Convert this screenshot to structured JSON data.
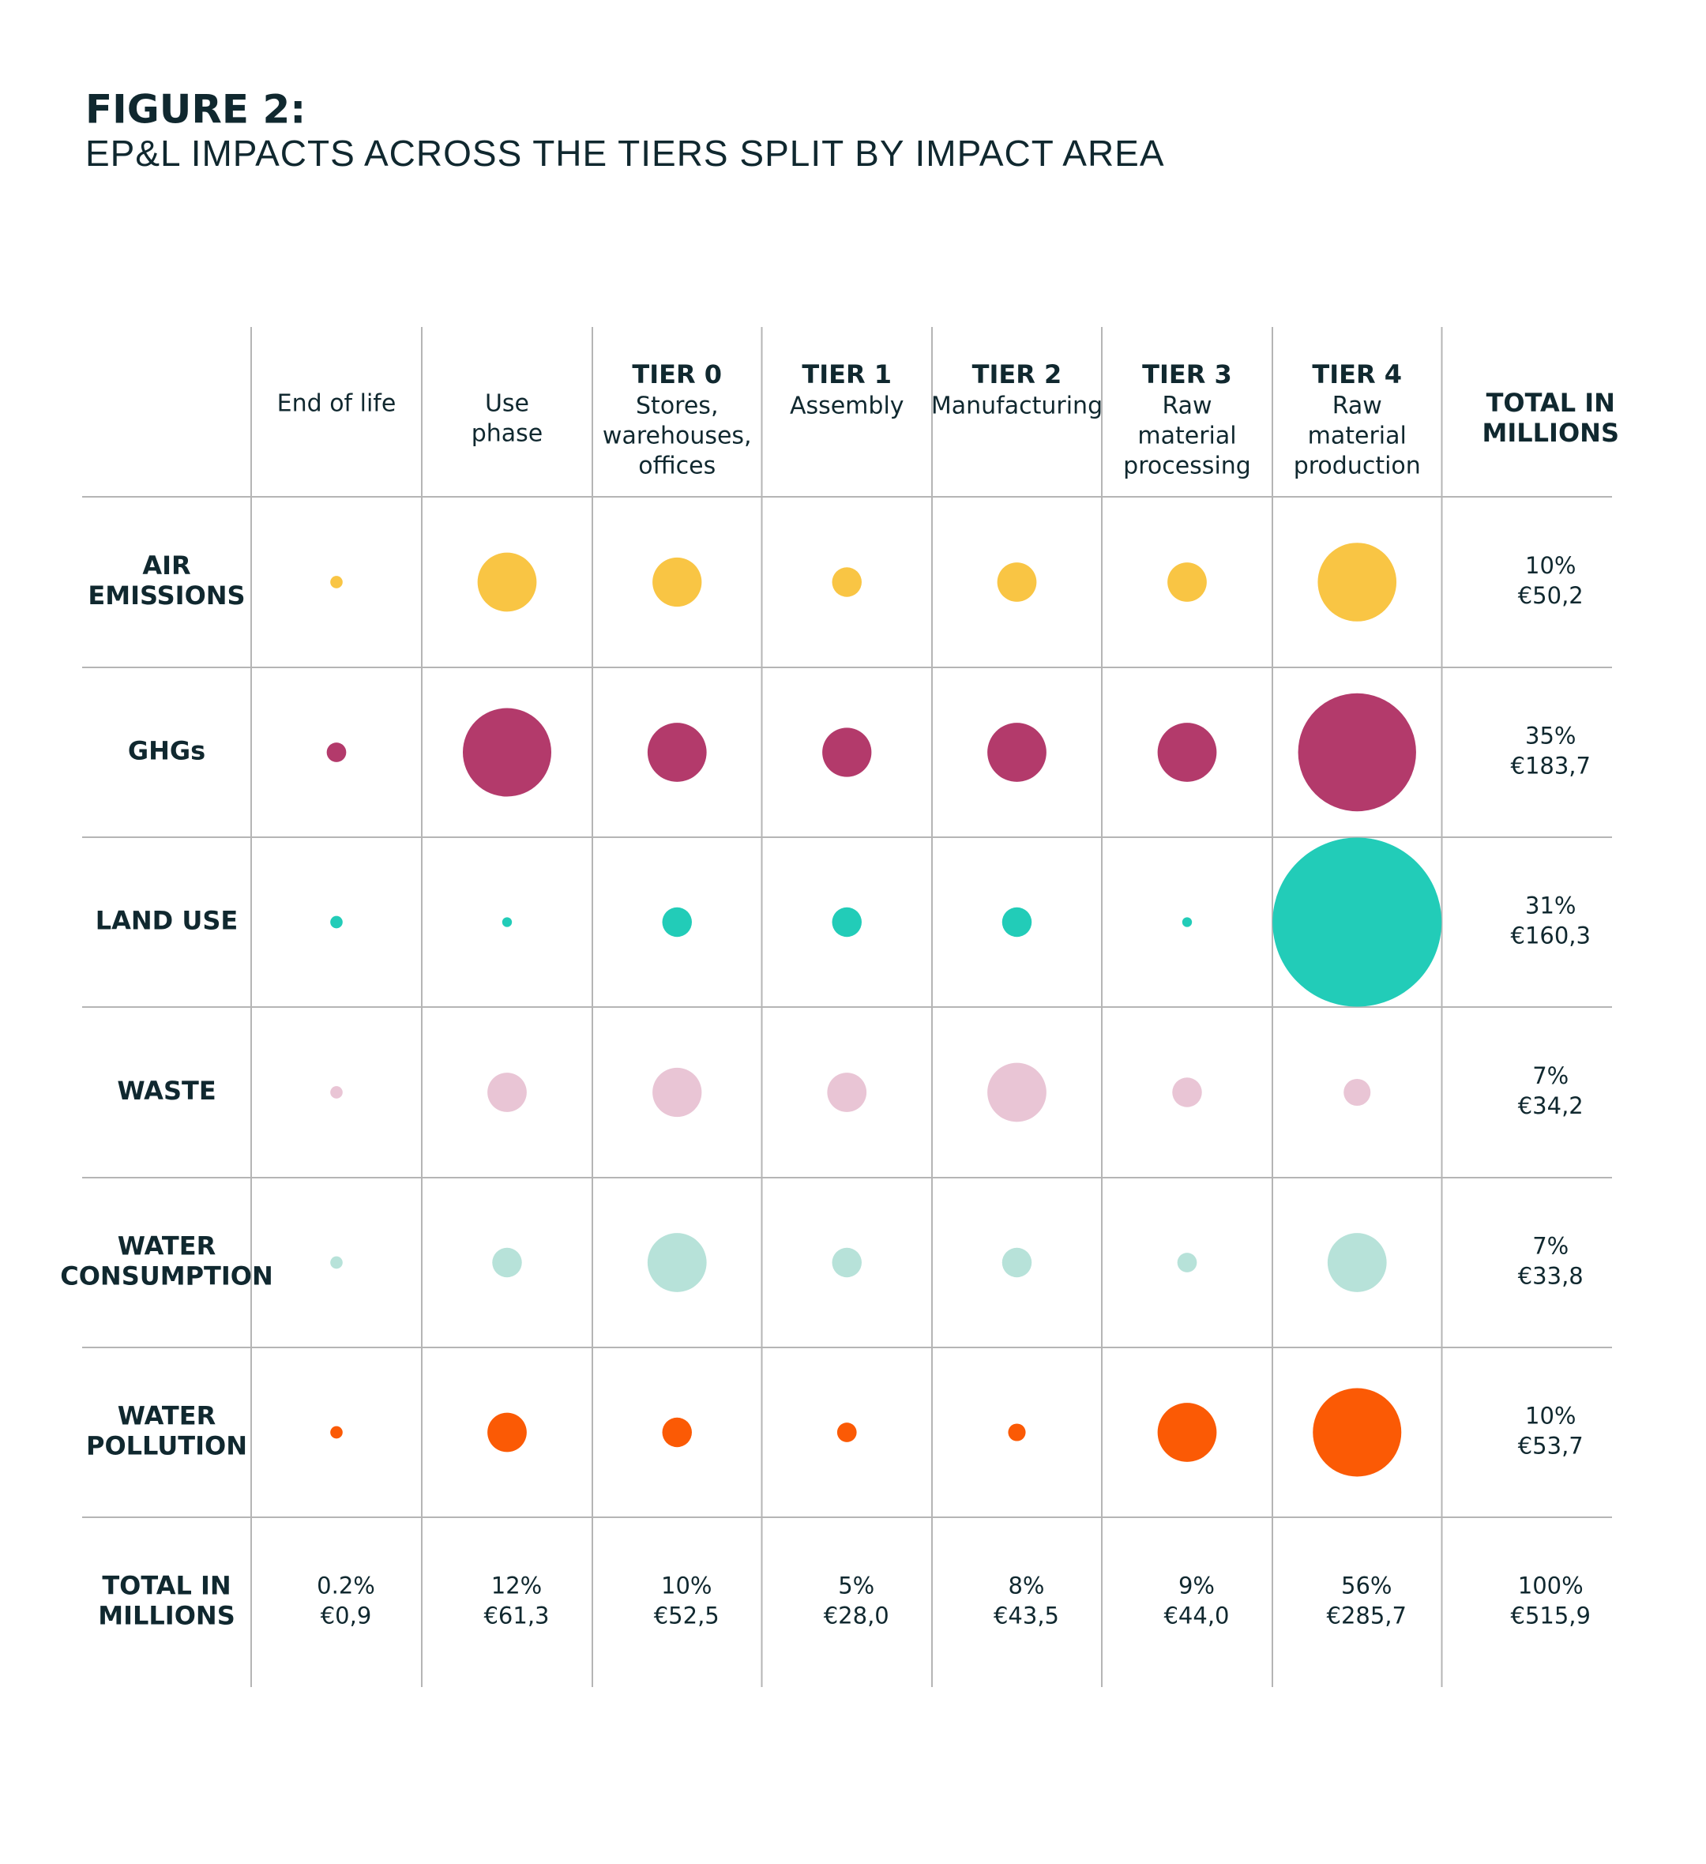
{
  "chart_data": {
    "type": "bubble",
    "title": "FIGURE 2:",
    "subtitle": "EP&L IMPACTS ACROSS THE TIERS SPLIT BY IMPACT AREA",
    "columns": [
      {
        "lines": [
          "End of life"
        ]
      },
      {
        "lines": [
          "Use",
          "phase"
        ]
      },
      {
        "tier": "TIER 0",
        "lines": [
          "Stores,",
          "warehouses,",
          "offices"
        ]
      },
      {
        "tier": "TIER 1",
        "lines": [
          "Assembly"
        ]
      },
      {
        "tier": "TIER 2",
        "lines": [
          "Manufacturing"
        ]
      },
      {
        "tier": "TIER 3",
        "lines": [
          "Raw",
          "material",
          "processing"
        ]
      },
      {
        "tier": "TIER 4",
        "lines": [
          "Raw",
          "material",
          "production"
        ]
      }
    ],
    "total_header": [
      "TOTAL IN",
      "MILLIONS"
    ],
    "series": [
      {
        "name": [
          "AIR",
          "EMISSIONS"
        ],
        "color": "#f9c544",
        "values": [
          0.8,
          18.3,
          12.7,
          4.6,
          8.1,
          8.1,
          32.5
        ],
        "total": [
          "10%",
          "€50,2"
        ]
      },
      {
        "name": [
          "GHGs"
        ],
        "color": "#b33a6b",
        "values": [
          2.0,
          41.1,
          18.3,
          12.7,
          18.3,
          18.3,
          73.1
        ],
        "total": [
          "35%",
          "€183,7"
        ]
      },
      {
        "name": [
          "LAND USE"
        ],
        "color": "#22ccb8",
        "values": [
          0.8,
          0.5,
          4.6,
          4.6,
          4.6,
          0.5,
          150
        ],
        "total": [
          "31%",
          "€160,3"
        ]
      },
      {
        "name": [
          "WASTE"
        ],
        "color": "#e9c5d5",
        "values": [
          0.8,
          8.1,
          12.7,
          8.1,
          18.3,
          4.6,
          3.8
        ],
        "total": [
          "7%",
          "€34,2"
        ]
      },
      {
        "name": [
          "WATER",
          "CONSUMPTION"
        ],
        "color": "#b7e2d9",
        "values": [
          0.8,
          4.6,
          18.3,
          4.6,
          4.6,
          2.0,
          18.3
        ],
        "total": [
          "7%",
          "€33,8"
        ]
      },
      {
        "name": [
          "WATER",
          "POLLUTION"
        ],
        "color": "#fb5a05",
        "values": [
          0.8,
          8.1,
          4.6,
          2.0,
          1.6,
          18.3,
          41.1
        ],
        "total": [
          "10%",
          "€53,7"
        ]
      }
    ],
    "total_row": {
      "name": [
        "TOTAL IN",
        "MILLIONS"
      ],
      "columns": [
        [
          "0.2%",
          "€0,9"
        ],
        [
          "12%",
          "€61,3"
        ],
        [
          "10%",
          "€52,5"
        ],
        [
          "5%",
          "€28,0"
        ],
        [
          "8%",
          "€43,5"
        ],
        [
          "9%",
          "€44,0"
        ],
        [
          "56%",
          "€285,7"
        ]
      ],
      "overall": [
        "100%",
        "€515,9"
      ]
    }
  }
}
